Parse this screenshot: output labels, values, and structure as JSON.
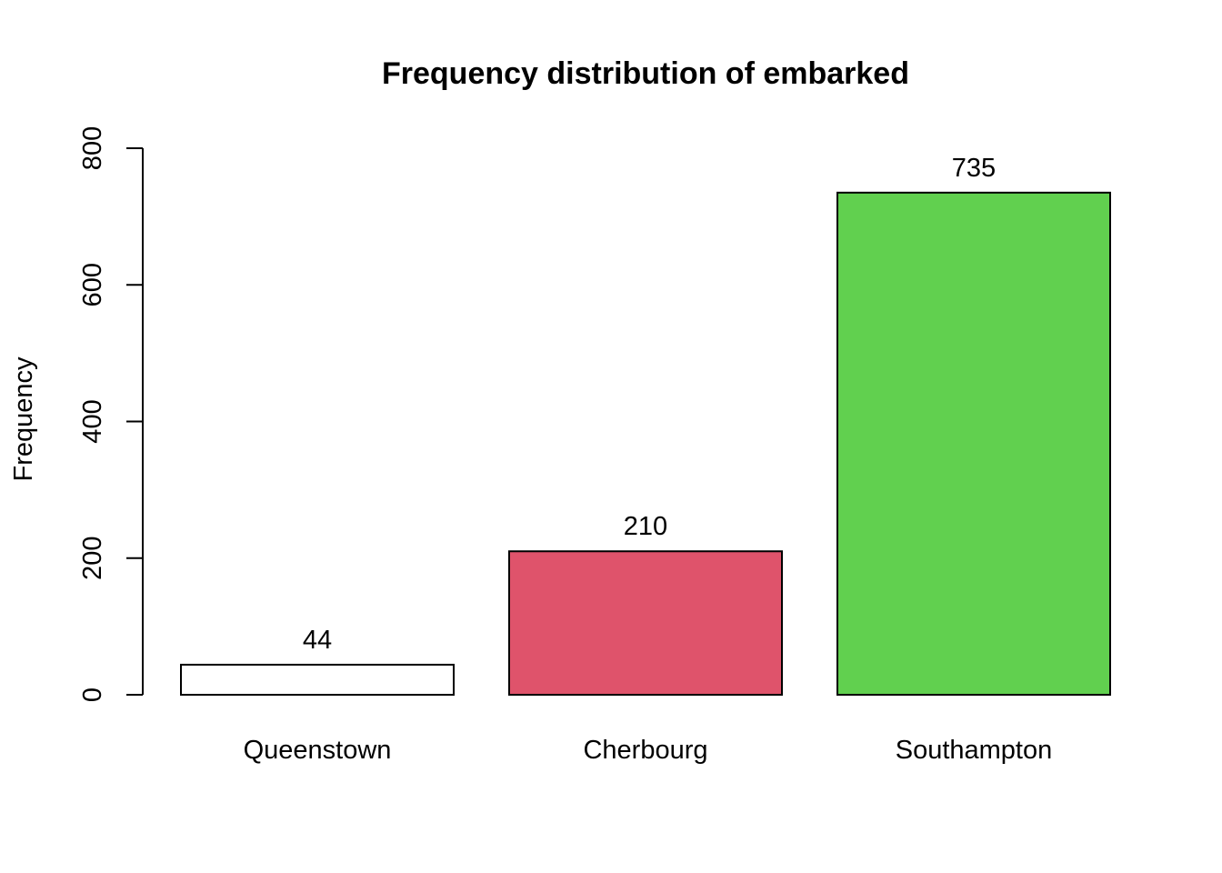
{
  "chart_data": {
    "type": "bar",
    "title": "Frequency distribution of embarked",
    "xlabel": "",
    "ylabel": "Frequency",
    "categories": [
      "Queenstown",
      "Cherbourg",
      "Southampton"
    ],
    "values": [
      44,
      210,
      735
    ],
    "value_labels": [
      "44",
      "210",
      "735"
    ],
    "colors": [
      "#FFFFFF",
      "#DF536B",
      "#61D04F"
    ],
    "ylim": [
      0,
      800
    ],
    "yticks": [
      0,
      200,
      400,
      600,
      800
    ],
    "ytick_labels": [
      "0",
      "200",
      "400",
      "600",
      "800"
    ],
    "grid": false,
    "legend": "none"
  }
}
